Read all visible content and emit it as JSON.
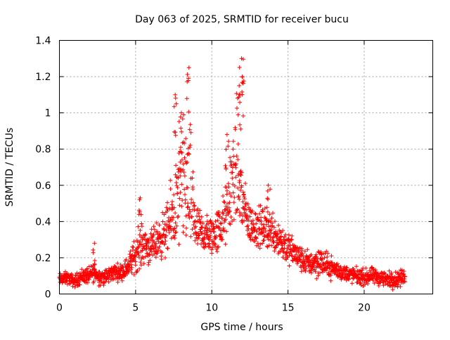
{
  "chart_data": {
    "type": "scatter",
    "title": "Day 063 of 2025, SRMTID for receiver bucu",
    "xlabel": "GPS time / hours",
    "ylabel": "SRMTID / TECUs",
    "xlim": [
      0,
      24.5
    ],
    "ylim": [
      0,
      1.4
    ],
    "xticks": [
      0,
      5,
      10,
      15,
      20
    ],
    "xtick_labels": [
      "0",
      "5",
      "10",
      "15",
      "20"
    ],
    "yticks": [
      0,
      0.2,
      0.4,
      0.6,
      0.8,
      1.0,
      1.2,
      1.4
    ],
    "ytick_labels": [
      "0",
      "0.2",
      "0.4",
      "0.6",
      "0.8",
      "1",
      "1.2",
      "1.4"
    ],
    "grid": true,
    "marker": "+",
    "color": "#ff0000",
    "series": [
      {
        "name": "SRMTID",
        "profile_x": [
          0,
          0.5,
          1,
          1.5,
          2,
          2.3,
          2.5,
          3,
          3.5,
          4,
          4.5,
          5,
          5.5,
          6,
          6.5,
          7,
          7.5,
          8,
          8.3,
          8.6,
          9,
          9.5,
          10,
          10.5,
          11,
          11.3,
          11.6,
          11.9,
          12.2,
          12.5,
          13,
          13.5,
          14,
          14.5,
          15,
          15.5,
          16,
          16.5,
          17,
          17.5,
          18,
          18.5,
          19,
          19.5,
          20,
          20.5,
          21,
          21.5,
          22,
          22.5,
          22.7
        ],
        "profile_center": [
          0.08,
          0.09,
          0.07,
          0.1,
          0.1,
          0.13,
          0.1,
          0.09,
          0.12,
          0.12,
          0.15,
          0.22,
          0.28,
          0.25,
          0.3,
          0.34,
          0.45,
          0.58,
          0.62,
          0.55,
          0.35,
          0.33,
          0.32,
          0.36,
          0.45,
          0.62,
          0.7,
          0.55,
          0.45,
          0.38,
          0.37,
          0.36,
          0.35,
          0.3,
          0.25,
          0.22,
          0.18,
          0.17,
          0.18,
          0.16,
          0.14,
          0.12,
          0.11,
          0.1,
          0.09,
          0.1,
          0.09,
          0.08,
          0.08,
          0.09,
          0.1
        ],
        "profile_spread": [
          0.03,
          0.03,
          0.03,
          0.04,
          0.04,
          0.05,
          0.04,
          0.04,
          0.04,
          0.04,
          0.05,
          0.09,
          0.1,
          0.08,
          0.1,
          0.12,
          0.2,
          0.3,
          0.34,
          0.32,
          0.12,
          0.1,
          0.1,
          0.12,
          0.15,
          0.25,
          0.3,
          0.28,
          0.12,
          0.1,
          0.1,
          0.1,
          0.1,
          0.1,
          0.08,
          0.07,
          0.06,
          0.06,
          0.08,
          0.06,
          0.05,
          0.04,
          0.04,
          0.04,
          0.04,
          0.04,
          0.04,
          0.04,
          0.04,
          0.04,
          0.04
        ],
        "peaks": [
          {
            "x": 8.5,
            "y": 1.25
          },
          {
            "x": 7.6,
            "y": 1.1
          },
          {
            "x": 8.0,
            "y": 1.0
          },
          {
            "x": 11.95,
            "y": 1.3
          },
          {
            "x": 11.8,
            "y": 1.15
          },
          {
            "x": 12.0,
            "y": 1.2
          },
          {
            "x": 11.0,
            "y": 0.88
          },
          {
            "x": 2.3,
            "y": 0.28
          },
          {
            "x": 5.3,
            "y": 0.53
          },
          {
            "x": 13.7,
            "y": 0.6
          }
        ],
        "point_count": 1700
      }
    ]
  }
}
